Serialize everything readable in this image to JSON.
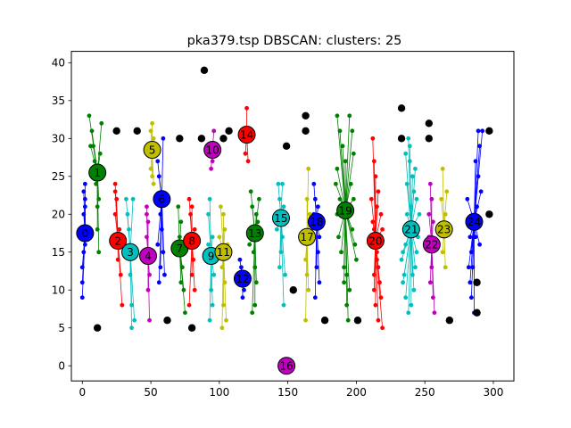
{
  "chart_data": {
    "type": "scatter",
    "title": "pka379.tsp DBSCAN: clusters: 25",
    "xlabel": "",
    "ylabel": "",
    "xlim": [
      -8,
      315
    ],
    "ylim": [
      -2,
      41.5
    ],
    "xticks": [
      0,
      50,
      100,
      150,
      200,
      250,
      300
    ],
    "yticks": [
      0,
      5,
      10,
      15,
      20,
      25,
      30,
      35,
      40
    ],
    "grid": false,
    "legend": "none",
    "palette": [
      "#0000ff",
      "#008000",
      "#ff0000",
      "#00bfbf",
      "#bf00bf",
      "#bfbf00"
    ],
    "noise_color": "#000000",
    "clusters": [
      {
        "label": "0",
        "center": [
          2,
          17.5
        ],
        "points": [
          [
            0,
            9
          ],
          [
            0,
            11
          ],
          [
            0,
            13
          ],
          [
            1,
            15
          ],
          [
            2,
            16
          ],
          [
            1,
            20
          ],
          [
            2,
            21
          ],
          [
            2,
            22
          ],
          [
            1,
            23
          ],
          [
            2,
            24
          ]
        ]
      },
      {
        "label": "1",
        "center": [
          11,
          25.5
        ],
        "points": [
          [
            5,
            33
          ],
          [
            7,
            31
          ],
          [
            8,
            29
          ],
          [
            9,
            27
          ],
          [
            10,
            24
          ],
          [
            11,
            21
          ],
          [
            11,
            18
          ],
          [
            12,
            15
          ],
          [
            13,
            28
          ],
          [
            14,
            32
          ],
          [
            12,
            22
          ],
          [
            6,
            29
          ]
        ]
      },
      {
        "label": "2",
        "center": [
          26,
          16.5
        ],
        "points": [
          [
            24,
            24
          ],
          [
            25,
            22
          ],
          [
            24,
            20
          ],
          [
            27,
            18
          ],
          [
            26,
            14
          ],
          [
            28,
            12
          ],
          [
            29,
            8
          ],
          [
            24,
            23
          ]
        ]
      },
      {
        "label": "3",
        "center": [
          35,
          15
        ],
        "points": [
          [
            32,
            22
          ],
          [
            33,
            20
          ],
          [
            34,
            18
          ],
          [
            35,
            12
          ],
          [
            36,
            8
          ],
          [
            38,
            6
          ],
          [
            36,
            5
          ],
          [
            37,
            22
          ]
        ]
      },
      {
        "label": "4",
        "center": [
          48,
          14.5
        ],
        "points": [
          [
            47,
            21
          ],
          [
            48,
            19
          ],
          [
            47,
            17
          ],
          [
            49,
            12
          ],
          [
            48,
            10
          ],
          [
            49,
            6
          ],
          [
            47,
            20
          ]
        ]
      },
      {
        "label": "5",
        "center": [
          51,
          28.5
        ],
        "points": [
          [
            51,
            32
          ],
          [
            52,
            30
          ],
          [
            50,
            26
          ],
          [
            51,
            25
          ],
          [
            52,
            24
          ],
          [
            50,
            31
          ]
        ]
      },
      {
        "label": "6",
        "center": [
          58,
          22
        ],
        "points": [
          [
            55,
            27
          ],
          [
            56,
            25
          ],
          [
            57,
            20
          ],
          [
            58,
            18
          ],
          [
            59,
            15
          ],
          [
            57,
            13
          ],
          [
            56,
            11
          ],
          [
            60,
            12
          ],
          [
            59,
            30
          ],
          [
            55,
            16
          ]
        ]
      },
      {
        "label": "7",
        "center": [
          71,
          15.5
        ],
        "points": [
          [
            70,
            21
          ],
          [
            72,
            19
          ],
          [
            71,
            17
          ],
          [
            73,
            13
          ],
          [
            74,
            10
          ],
          [
            75,
            7
          ],
          [
            72,
            11
          ]
        ]
      },
      {
        "label": "8",
        "center": [
          80,
          16.5
        ],
        "points": [
          [
            78,
            22
          ],
          [
            79,
            20
          ],
          [
            82,
            18
          ],
          [
            81,
            14
          ],
          [
            80,
            12
          ],
          [
            82,
            10
          ],
          [
            78,
            8
          ],
          [
            80,
            21
          ]
        ]
      },
      {
        "label": "9",
        "center": [
          94,
          14.5
        ],
        "points": [
          [
            92,
            20
          ],
          [
            93,
            22
          ],
          [
            95,
            17
          ],
          [
            96,
            12
          ],
          [
            94,
            10
          ],
          [
            95,
            8
          ],
          [
            93,
            6
          ],
          [
            92,
            16
          ]
        ]
      },
      {
        "label": "10",
        "center": [
          95,
          28.5
        ],
        "points": [
          [
            94,
            26
          ],
          [
            96,
            31
          ],
          [
            95,
            27
          ]
        ]
      },
      {
        "label": "11",
        "center": [
          103,
          15
        ],
        "points": [
          [
            101,
            21
          ],
          [
            103,
            20
          ],
          [
            104,
            18
          ],
          [
            102,
            13
          ],
          [
            104,
            11
          ],
          [
            103,
            8
          ],
          [
            105,
            6
          ],
          [
            102,
            5
          ],
          [
            100,
            17
          ],
          [
            106,
            16
          ]
        ]
      },
      {
        "label": "12",
        "center": [
          117,
          11.5
        ],
        "points": [
          [
            115,
            14
          ],
          [
            116,
            13
          ],
          [
            118,
            10
          ],
          [
            117,
            9
          ],
          [
            119,
            12
          ]
        ]
      },
      {
        "label": "13",
        "center": [
          126,
          17.5
        ],
        "points": [
          [
            123,
            23
          ],
          [
            124,
            21
          ],
          [
            127,
            20
          ],
          [
            128,
            19
          ],
          [
            125,
            15
          ],
          [
            126,
            13
          ],
          [
            127,
            11
          ],
          [
            126,
            8
          ],
          [
            124,
            7
          ],
          [
            129,
            22
          ],
          [
            122,
            16
          ]
        ]
      },
      {
        "label": "14",
        "center": [
          120,
          30.5
        ],
        "points": [
          [
            120,
            34
          ],
          [
            119,
            28
          ],
          [
            121,
            27
          ]
        ]
      },
      {
        "label": "15",
        "center": [
          145,
          19.5
        ],
        "points": [
          [
            143,
            24
          ],
          [
            144,
            22
          ],
          [
            146,
            24
          ],
          [
            147,
            21
          ],
          [
            146,
            17
          ],
          [
            145,
            15
          ],
          [
            144,
            13
          ],
          [
            148,
            12
          ],
          [
            147,
            8
          ],
          [
            142,
            18
          ]
        ]
      },
      {
        "label": "16",
        "center": [
          149,
          0
        ],
        "points": []
      },
      {
        "label": "17",
        "center": [
          164,
          17
        ],
        "points": [
          [
            165,
            26
          ],
          [
            164,
            22
          ],
          [
            166,
            20
          ],
          [
            163,
            14
          ],
          [
            164,
            12
          ],
          [
            165,
            10
          ],
          [
            163,
            6
          ],
          [
            166,
            19
          ]
        ]
      },
      {
        "label": "18",
        "center": [
          171,
          19
        ],
        "points": [
          [
            169,
            24
          ],
          [
            170,
            22
          ],
          [
            172,
            21
          ],
          [
            173,
            17
          ],
          [
            172,
            15
          ],
          [
            171,
            13
          ],
          [
            173,
            11
          ],
          [
            170,
            9
          ],
          [
            169,
            20
          ]
        ]
      },
      {
        "label": "19",
        "center": [
          192,
          20.5
        ],
        "points": [
          [
            186,
            33
          ],
          [
            188,
            31
          ],
          [
            190,
            29
          ],
          [
            192,
            27
          ],
          [
            195,
            33
          ],
          [
            197,
            31
          ],
          [
            198,
            28
          ],
          [
            186,
            26
          ],
          [
            196,
            24
          ],
          [
            188,
            22
          ],
          [
            186,
            20
          ],
          [
            187,
            17
          ],
          [
            189,
            15
          ],
          [
            191,
            13
          ],
          [
            193,
            12
          ],
          [
            195,
            10
          ],
          [
            197,
            18
          ],
          [
            199,
            16
          ],
          [
            200,
            14
          ],
          [
            191,
            11
          ],
          [
            193,
            8
          ],
          [
            185,
            24
          ],
          [
            198,
            22
          ],
          [
            194,
            6
          ]
        ]
      },
      {
        "label": "20",
        "center": [
          214,
          16.5
        ],
        "points": [
          [
            212,
            30
          ],
          [
            213,
            27
          ],
          [
            214,
            25
          ],
          [
            216,
            23
          ],
          [
            215,
            21
          ],
          [
            212,
            19
          ],
          [
            213,
            18
          ],
          [
            211,
            16
          ],
          [
            215,
            14
          ],
          [
            216,
            13
          ],
          [
            217,
            11
          ],
          [
            218,
            9
          ],
          [
            214,
            8
          ],
          [
            216,
            6
          ],
          [
            219,
            5
          ],
          [
            213,
            12
          ],
          [
            218,
            20
          ],
          [
            211,
            22
          ],
          [
            217,
            17
          ],
          [
            213,
            10
          ],
          [
            215,
            15
          ],
          [
            219,
            18
          ]
        ]
      },
      {
        "label": "21",
        "center": [
          240,
          18
        ],
        "points": [
          [
            238,
            30
          ],
          [
            239,
            27
          ],
          [
            241,
            25
          ],
          [
            242,
            23
          ],
          [
            240,
            21
          ],
          [
            237,
            20
          ],
          [
            235,
            18
          ],
          [
            236,
            16
          ],
          [
            234,
            15
          ],
          [
            233,
            14
          ],
          [
            235,
            12
          ],
          [
            234,
            11
          ],
          [
            236,
            9
          ],
          [
            238,
            7
          ],
          [
            240,
            8
          ],
          [
            242,
            10
          ],
          [
            241,
            12
          ],
          [
            243,
            13
          ],
          [
            244,
            15
          ],
          [
            245,
            17
          ],
          [
            246,
            20
          ],
          [
            244,
            22
          ],
          [
            243,
            26
          ],
          [
            237,
            24
          ],
          [
            239,
            29
          ],
          [
            236,
            28
          ]
        ]
      },
      {
        "label": "22",
        "center": [
          255,
          16
        ],
        "points": [
          [
            254,
            24
          ],
          [
            255,
            22
          ],
          [
            253,
            20
          ],
          [
            256,
            19
          ],
          [
            255,
            13
          ],
          [
            254,
            11
          ],
          [
            256,
            9
          ],
          [
            257,
            7
          ],
          [
            253,
            17
          ]
        ]
      },
      {
        "label": "23",
        "center": [
          264,
          18
        ],
        "points": [
          [
            263,
            26
          ],
          [
            262,
            22
          ],
          [
            265,
            20
          ],
          [
            264,
            17
          ],
          [
            263,
            15
          ],
          [
            265,
            13
          ],
          [
            266,
            23
          ]
        ]
      },
      {
        "label": "24",
        "center": [
          286,
          19
        ],
        "points": [
          [
            289,
            31
          ],
          [
            290,
            29
          ],
          [
            287,
            27
          ],
          [
            289,
            25
          ],
          [
            291,
            23
          ],
          [
            288,
            21
          ],
          [
            285,
            19
          ],
          [
            283,
            17
          ],
          [
            284,
            15
          ],
          [
            282,
            13
          ],
          [
            283,
            11
          ],
          [
            284,
            9
          ],
          [
            286,
            7
          ],
          [
            287,
            17
          ],
          [
            285,
            13
          ],
          [
            292,
            31
          ],
          [
            281,
            22
          ],
          [
            290,
            16
          ]
        ]
      }
    ],
    "noise": [
      [
        11,
        5
      ],
      [
        25,
        31
      ],
      [
        40,
        31
      ],
      [
        62,
        6
      ],
      [
        71,
        30
      ],
      [
        80,
        5
      ],
      [
        87,
        30
      ],
      [
        89,
        39
      ],
      [
        103,
        30
      ],
      [
        107,
        31
      ],
      [
        149,
        29
      ],
      [
        154,
        10
      ],
      [
        163,
        31
      ],
      [
        163,
        33
      ],
      [
        177,
        6
      ],
      [
        201,
        6
      ],
      [
        233,
        34
      ],
      [
        233,
        30
      ],
      [
        253,
        32
      ],
      [
        253,
        30
      ],
      [
        268,
        6
      ],
      [
        288,
        11
      ],
      [
        288,
        7
      ],
      [
        297,
        20
      ],
      [
        297,
        31
      ]
    ]
  }
}
